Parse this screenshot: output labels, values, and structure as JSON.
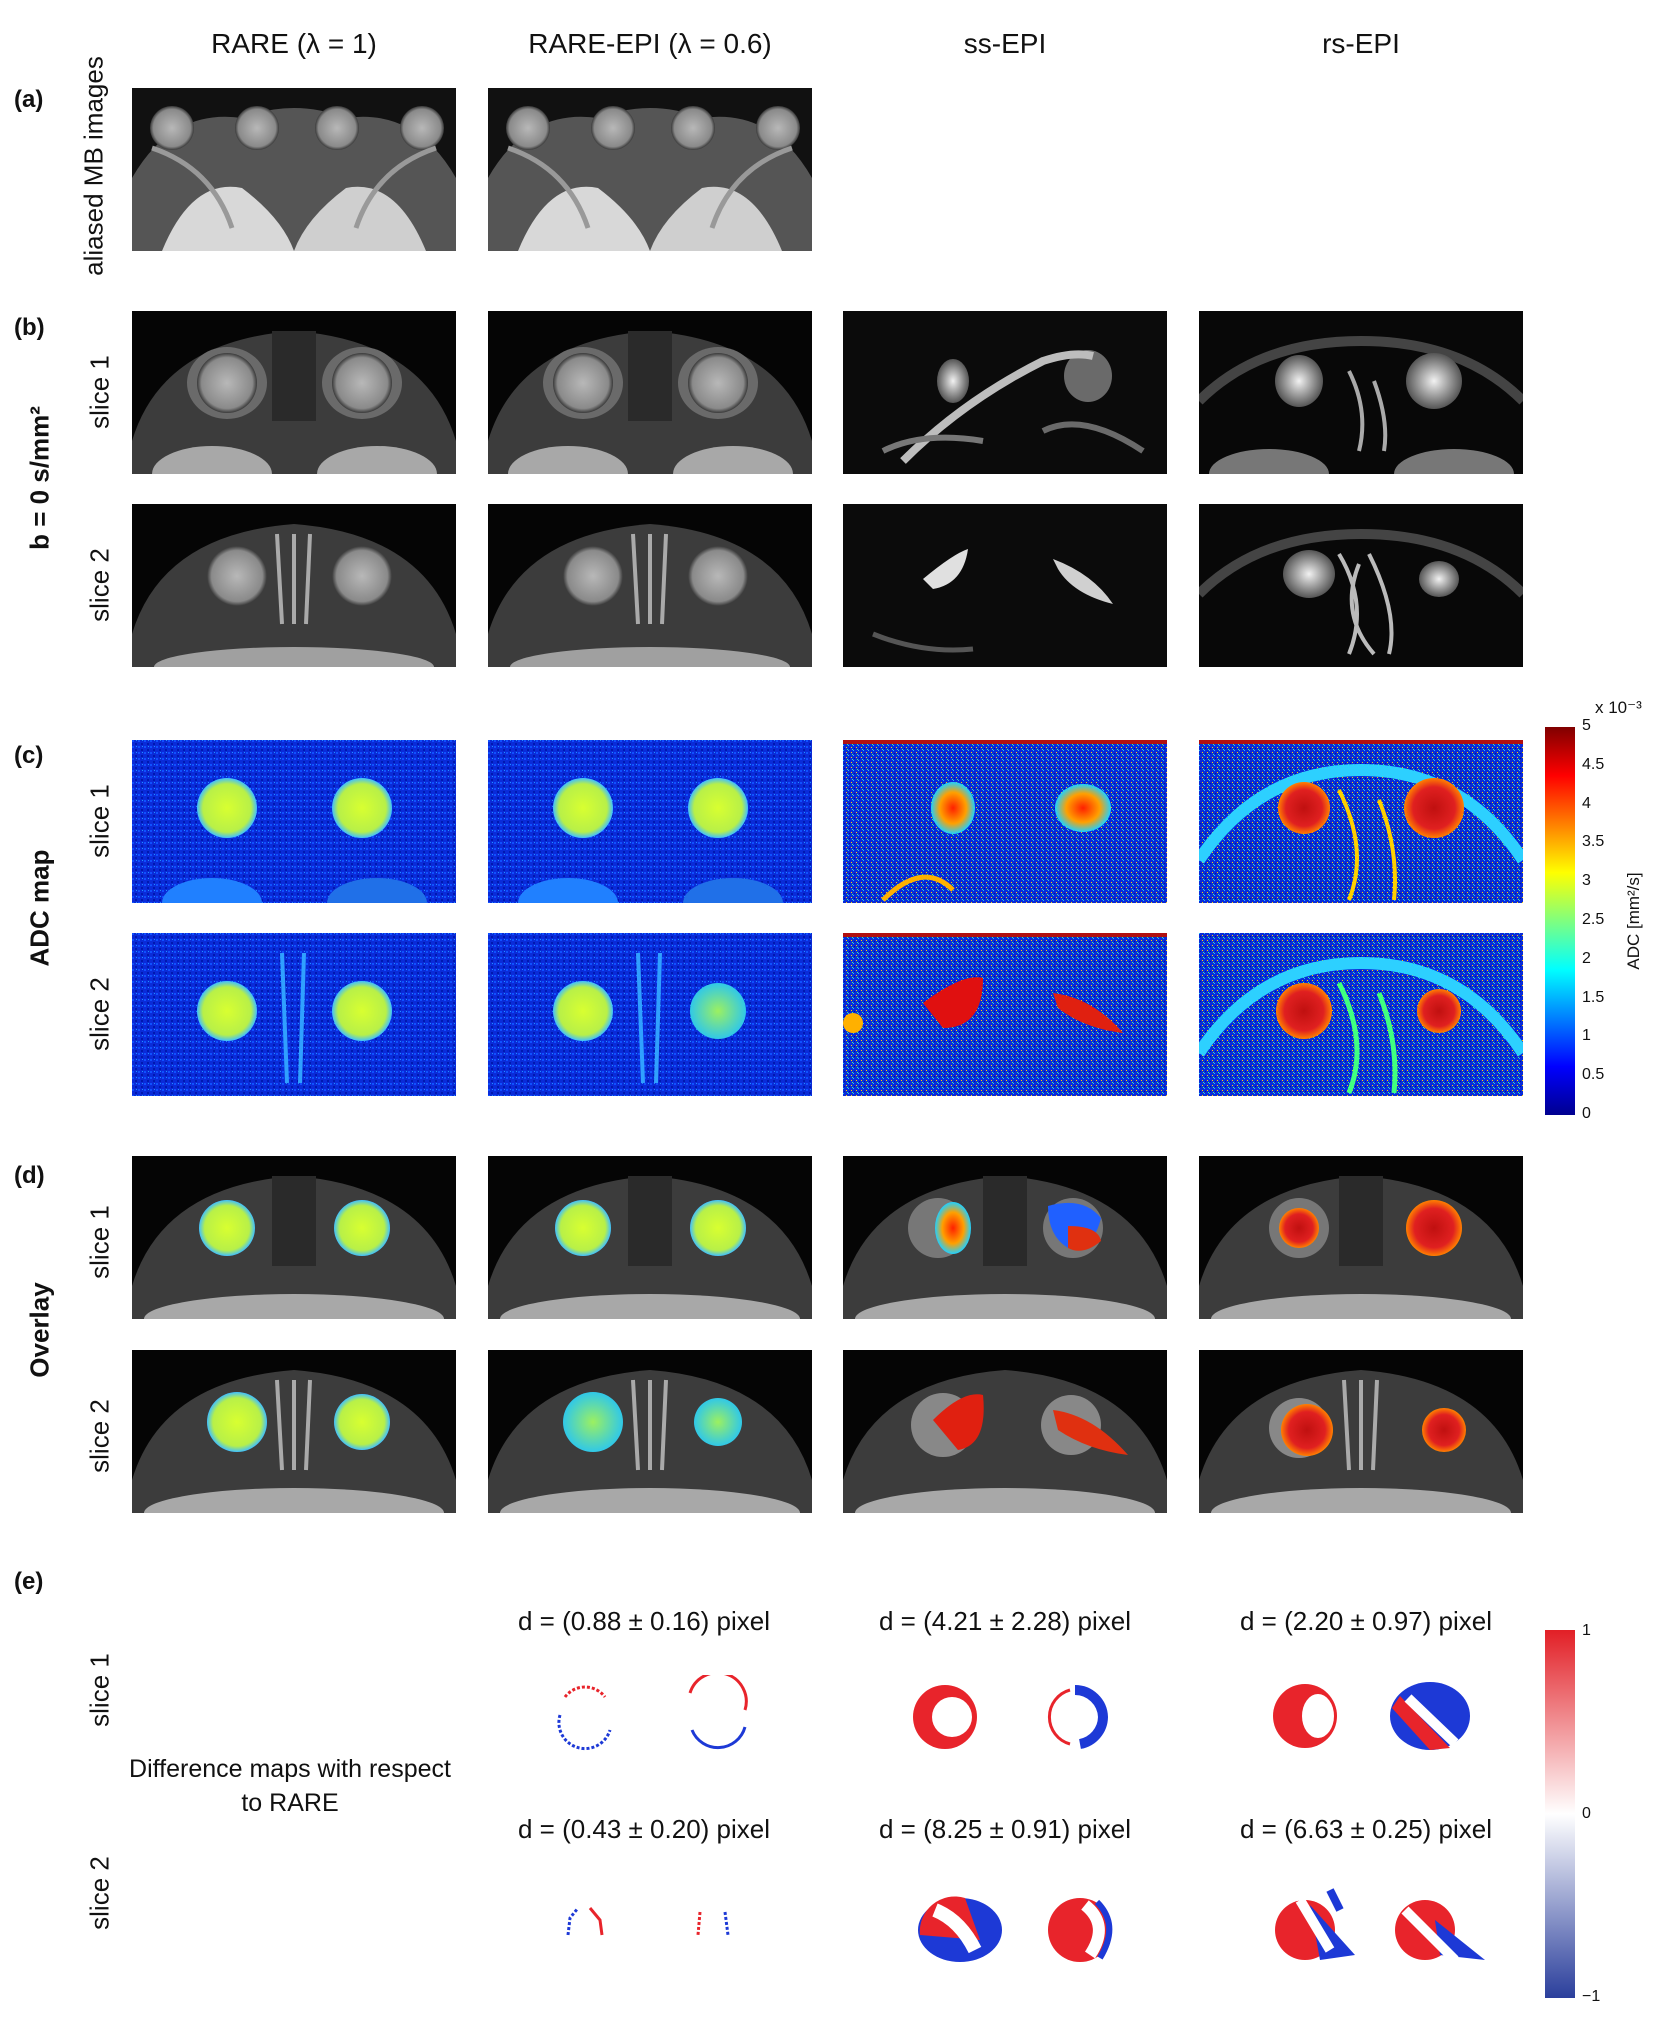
{
  "columns": [
    "RARE (λ = 1)",
    "RARE-EPI (λ = 0.6)",
    "ss-EPI",
    "rs-EPI"
  ],
  "panels": {
    "a": {
      "letter": "(a)",
      "label": "aliased MB images"
    },
    "b": {
      "letter": "(b)",
      "label": "b = 0 s/mm²",
      "rows": [
        "slice 1",
        "slice 2"
      ]
    },
    "c": {
      "letter": "(c)",
      "label": "ADC map",
      "rows": [
        "slice 1",
        "slice 2"
      ]
    },
    "d": {
      "letter": "(d)",
      "label": "Overlay",
      "rows": [
        "slice 1",
        "slice 2"
      ]
    },
    "e": {
      "letter": "(e)",
      "rows": [
        "slice 1",
        "slice 2"
      ],
      "note": "Difference maps with respect to RARE"
    }
  },
  "adc_colorbar": {
    "exponent": "x 10⁻³",
    "label": "ADC [mm²/s]",
    "ticks": [
      "5",
      "4.5",
      "4",
      "3.5",
      "3",
      "2.5",
      "2",
      "1.5",
      "1",
      "0.5",
      "0"
    ]
  },
  "diff_colorbar": {
    "ticks": [
      "1",
      "0",
      "−1"
    ]
  },
  "distances": {
    "slice1": [
      "d = (0.88 ± 0.16) pixel",
      "d = (4.21 ± 2.28) pixel",
      "d = (2.20 ± 0.97) pixel"
    ],
    "slice2": [
      "d = (0.43 ± 0.20) pixel",
      "d = (8.25 ± 0.91) pixel",
      "d = (6.63 ± 0.25) pixel"
    ]
  },
  "colors": {
    "jet_low": "#00008f",
    "jet_high": "#800000",
    "diff_pos": "#e8242b",
    "diff_neg": "#1d39d6"
  }
}
